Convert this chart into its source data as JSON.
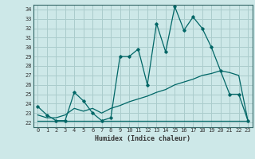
{
  "xlabel": "Humidex (Indice chaleur)",
  "bg_color": "#cde8e8",
  "grid_color": "#aacccc",
  "line_color": "#006666",
  "xlim": [
    -0.5,
    23.5
  ],
  "ylim": [
    21.5,
    34.5
  ],
  "yticks": [
    22,
    23,
    24,
    25,
    26,
    27,
    28,
    29,
    30,
    31,
    32,
    33,
    34
  ],
  "xticks": [
    0,
    1,
    2,
    3,
    4,
    5,
    6,
    7,
    8,
    9,
    10,
    11,
    12,
    13,
    14,
    15,
    16,
    17,
    18,
    19,
    20,
    21,
    22,
    23
  ],
  "line1_x": [
    0,
    1,
    2,
    3,
    4,
    5,
    6,
    7,
    8,
    9,
    10,
    11,
    12,
    13,
    14,
    15,
    16,
    17,
    18,
    19,
    20,
    21,
    22,
    23
  ],
  "line1_y": [
    23.7,
    22.8,
    22.2,
    22.2,
    25.2,
    24.3,
    23.0,
    22.2,
    22.5,
    29.0,
    29.0,
    29.8,
    26.0,
    32.5,
    29.5,
    34.3,
    31.8,
    33.2,
    32.0,
    30.0,
    27.5,
    25.0,
    25.0,
    22.2
  ],
  "line2_x": [
    0,
    1,
    2,
    3,
    4,
    5,
    6,
    7,
    8,
    9,
    10,
    11,
    12,
    13,
    14,
    15,
    16,
    17,
    18,
    19,
    20,
    21,
    22,
    23
  ],
  "line2_y": [
    22.2,
    22.2,
    22.2,
    22.2,
    22.2,
    22.2,
    22.2,
    22.2,
    22.2,
    22.2,
    22.2,
    22.2,
    22.2,
    22.2,
    22.2,
    22.2,
    22.2,
    22.2,
    22.2,
    22.2,
    22.2,
    22.2,
    22.2,
    22.2
  ],
  "line3_x": [
    0,
    1,
    2,
    3,
    4,
    5,
    6,
    7,
    8,
    9,
    10,
    11,
    12,
    13,
    14,
    15,
    16,
    17,
    18,
    19,
    20,
    21,
    22,
    23
  ],
  "line3_y": [
    22.8,
    22.5,
    22.5,
    22.8,
    23.5,
    23.2,
    23.5,
    23.0,
    23.5,
    23.8,
    24.2,
    24.5,
    24.8,
    25.2,
    25.5,
    26.0,
    26.3,
    26.6,
    27.0,
    27.2,
    27.5,
    27.3,
    27.0,
    22.2
  ]
}
